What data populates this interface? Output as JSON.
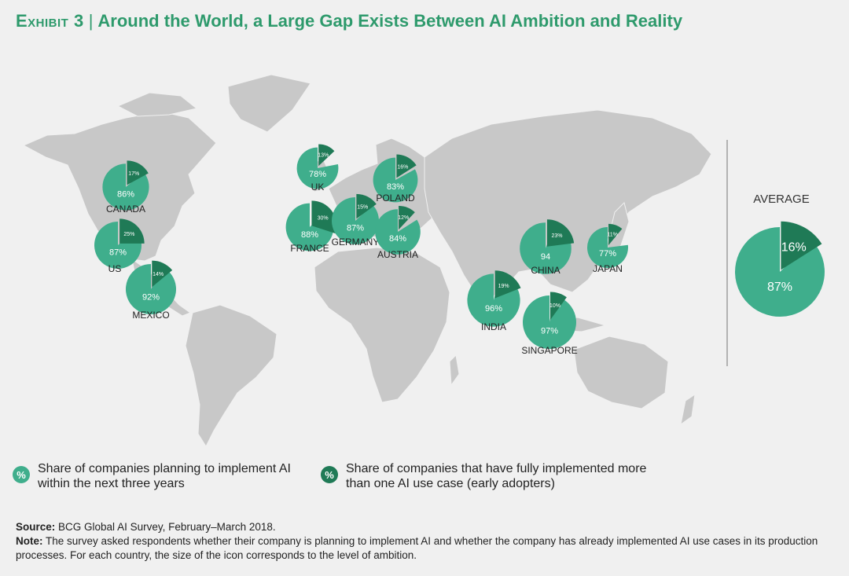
{
  "title": {
    "exhibit": "Exhibit 3",
    "text": "Around the World, a Large Gap Exists Between AI Ambition and Reality"
  },
  "colors": {
    "planning": "#3fae8c",
    "adopters": "#1f7a56",
    "land": "#c8c8c8",
    "background": "#f0f0f0",
    "title": "#2e9a6c"
  },
  "chart_data": {
    "type": "pie",
    "series": [
      {
        "name": "Share of companies planning to implement AI within the next three years"
      },
      {
        "name": "Share of companies that have fully implemented more than one AI use case (early adopters)"
      }
    ],
    "countries": [
      {
        "name": "CANADA",
        "planning": 86,
        "adopters": 17,
        "planning_label": "86%",
        "adopters_label": "17%"
      },
      {
        "name": "US",
        "planning": 87,
        "adopters": 25,
        "planning_label": "87%",
        "adopters_label": "25%"
      },
      {
        "name": "MEXICO",
        "planning": 92,
        "adopters": 14,
        "planning_label": "92%",
        "adopters_label": "14%"
      },
      {
        "name": "UK",
        "planning": 78,
        "adopters": 13,
        "planning_label": "78%",
        "adopters_label": "13%"
      },
      {
        "name": "FRANCE",
        "planning": 88,
        "adopters": 30,
        "planning_label": "88%",
        "adopters_label": "30%"
      },
      {
        "name": "GERMANY",
        "planning": 87,
        "adopters": 15,
        "planning_label": "87%",
        "adopters_label": "15%"
      },
      {
        "name": "POLAND",
        "planning": 83,
        "adopters": 16,
        "planning_label": "83%",
        "adopters_label": "16%"
      },
      {
        "name": "AUSTRIA",
        "planning": 84,
        "adopters": 12,
        "planning_label": "84%",
        "adopters_label": "12%"
      },
      {
        "name": "INDIA",
        "planning": 96,
        "adopters": 19,
        "planning_label": "96%",
        "adopters_label": "19%"
      },
      {
        "name": "CHINA",
        "planning": 94,
        "adopters": 23,
        "planning_label": "94",
        "adopters_label": "23%"
      },
      {
        "name": "JAPAN",
        "planning": 77,
        "adopters": 11,
        "planning_label": "77%",
        "adopters_label": "11%"
      },
      {
        "name": "SINGAPORE",
        "planning": 97,
        "adopters": 10,
        "planning_label": "97%",
        "adopters_label": "10%"
      }
    ],
    "average": {
      "name": "AVERAGE",
      "planning": 87,
      "adopters": 16,
      "planning_label": "87%",
      "adopters_label": "16%"
    }
  },
  "legend": {
    "planning_symbol": "%",
    "planning_text": "Share of companies planning to implement AI within the next three years",
    "adopters_symbol": "%",
    "adopters_text": "Share of companies that have fully implemented more than one AI use case (early adopters)"
  },
  "footer": {
    "source_label": "Source:",
    "source_text": "BCG Global AI Survey, February–March 2018.",
    "note_label": "Note:",
    "note_text": "The survey asked respondents whether their company is planning to implement AI and whether the company has already implemented AI use cases in its production processes. For each country, the size of the icon corresponds to the level of ambition."
  }
}
